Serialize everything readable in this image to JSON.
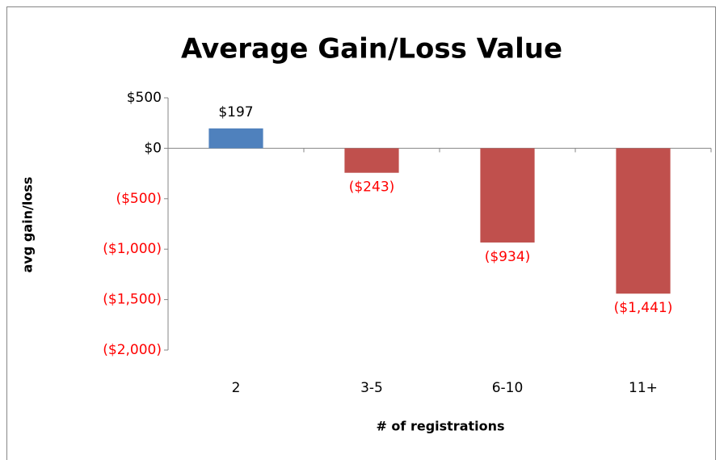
{
  "chart_data": {
    "type": "bar",
    "title": "Average Gain/Loss Value",
    "x_label": "# of registrations",
    "y_label": "avg gain/loss",
    "categories": [
      "2",
      "3-5",
      "6-10",
      "11+"
    ],
    "values": [
      197,
      -243,
      -934,
      -1441
    ],
    "value_labels": [
      "$197",
      "($243)",
      "($934)",
      "($1,441)"
    ],
    "colors": [
      "#4f81bd",
      "#c0504d",
      "#c0504d",
      "#c0504d"
    ],
    "negative_label_color": "#ff0000",
    "ylim": [
      -2000,
      500
    ],
    "yticks": [
      {
        "value": -2000,
        "label": "($2,000)"
      },
      {
        "value": -1500,
        "label": "($1,500)"
      },
      {
        "value": -1000,
        "label": "($1,000)"
      },
      {
        "value": -500,
        "label": "($500)"
      },
      {
        "value": 0,
        "label": "$0"
      },
      {
        "value": 500,
        "label": "$500"
      }
    ],
    "grid": false
  }
}
